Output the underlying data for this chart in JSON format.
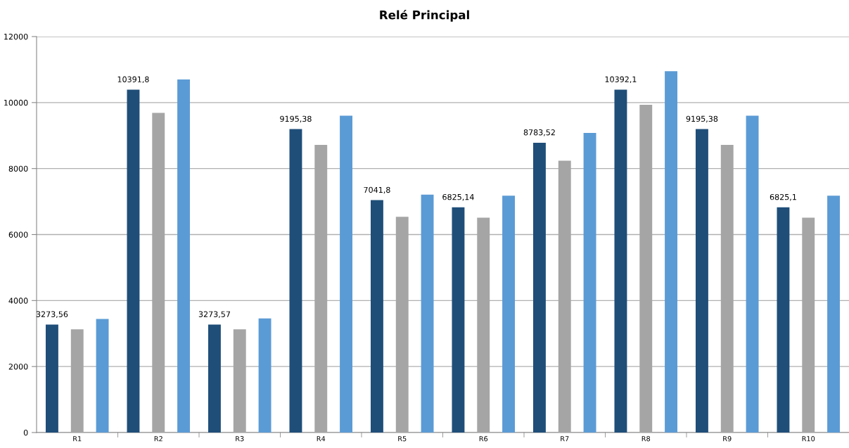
{
  "chart_data": {
    "type": "bar",
    "title": "Relé Principal",
    "categories": [
      "R1",
      "R2",
      "R3",
      "R4",
      "R5",
      "R6",
      "R7",
      "R8",
      "R9",
      "R10"
    ],
    "series": [
      {
        "color": "#1f4e79",
        "values": [
          3273.56,
          10391.8,
          3273.57,
          9195.38,
          7041.8,
          6825.14,
          8783.52,
          10392.1,
          9195.38,
          6825.1
        ],
        "value_labels": [
          "3273,56",
          "10391,8",
          "3273,57",
          "9195,38",
          "7041,8",
          "6825,14",
          "8783,52",
          "10392,1",
          "9195,38",
          "6825,1"
        ]
      },
      {
        "color": "#a5a5a5",
        "values": [
          3130,
          9690,
          3130,
          8720,
          6540,
          6510,
          8240,
          9930,
          8720,
          6510
        ]
      },
      {
        "color": "#5b9bd5",
        "values": [
          3440,
          10700,
          3460,
          9600,
          7210,
          7180,
          9080,
          10950,
          9600,
          7180
        ]
      }
    ],
    "ylim": [
      0,
      12000
    ],
    "yticks": [
      0,
      2000,
      4000,
      6000,
      8000,
      10000,
      12000
    ],
    "grid": "y"
  }
}
